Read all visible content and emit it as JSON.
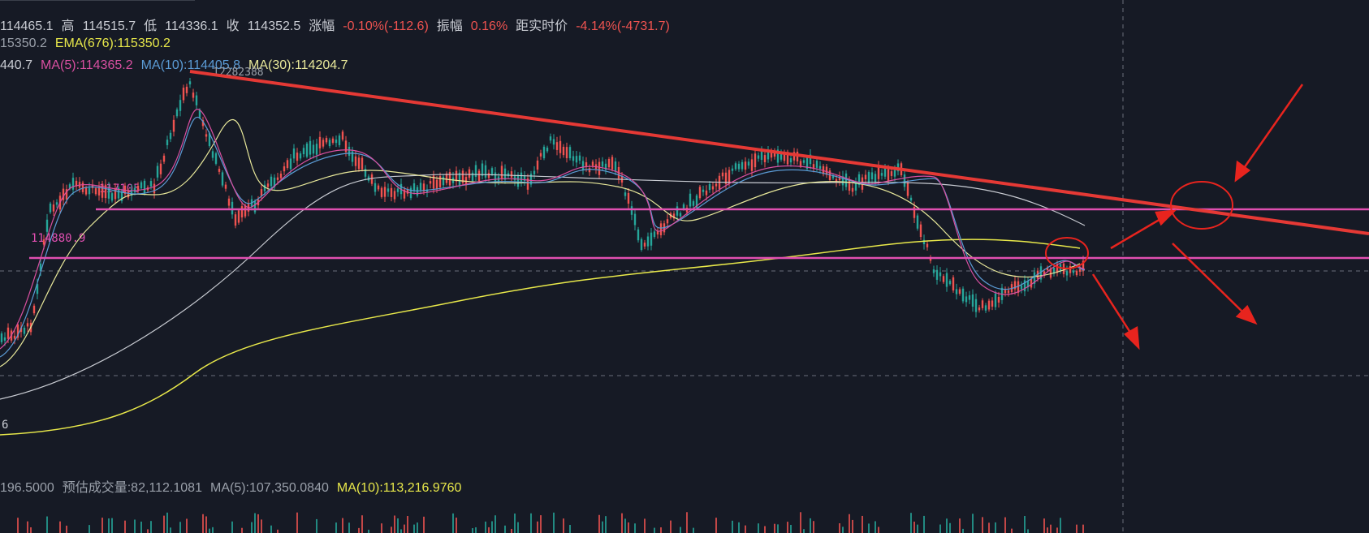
{
  "header": {
    "open": "114465.1",
    "high_label": "高",
    "high": "114515.7",
    "low_label": "低",
    "low": "114336.1",
    "close_label": "收",
    "close": "114352.5",
    "change_label": "涨幅",
    "change": "-0.10%(-112.6)",
    "amplitude_label": "振幅",
    "amplitude": "0.16%",
    "distance_label": "距实时价",
    "distance": "-4.14%(-4731.7)"
  },
  "ema_row": {
    "left_value": "15350.2",
    "ema": "EMA(676):115350.2"
  },
  "ma_row": {
    "left_value": "440.7",
    "ma5": "MA(5):114365.2",
    "ma10": "MA(10):114405.8",
    "ma30": "MA(30):114204.7",
    "overlay": "12282388"
  },
  "price_labels": {
    "level_upper": "117105",
    "level_lower": "114880.9",
    "axis_bottom": "6"
  },
  "volume_row": {
    "left_value": "196.5000",
    "est": "预估成交量:82,112.1081",
    "ma5": "MA(5):107,350.0840",
    "ma10": "MA(10):113,216.9760"
  },
  "colors": {
    "background": "#161a25",
    "ma5": "#d84fa0",
    "ma10": "#5b9bd5",
    "ma30": "#e8e89a",
    "ema676": "#e8e84a",
    "ma_long": "#c9ccd3",
    "level_line": "#e04fb0",
    "trendline": "#e53935",
    "annotation": "#e8241e",
    "up": "#26a69a",
    "down": "#ef5350"
  },
  "chart_data": {
    "type": "line",
    "series": [
      {
        "name": "MA(5)",
        "values": []
      },
      {
        "name": "MA(10)",
        "values": []
      },
      {
        "name": "MA(30)",
        "values": []
      },
      {
        "name": "EMA(676)",
        "values": []
      }
    ],
    "horizontal_levels": [
      117105,
      114880.9
    ],
    "annotations": [
      "downtrend line",
      "circle at intersection",
      "circle at current price",
      "arrows"
    ]
  }
}
